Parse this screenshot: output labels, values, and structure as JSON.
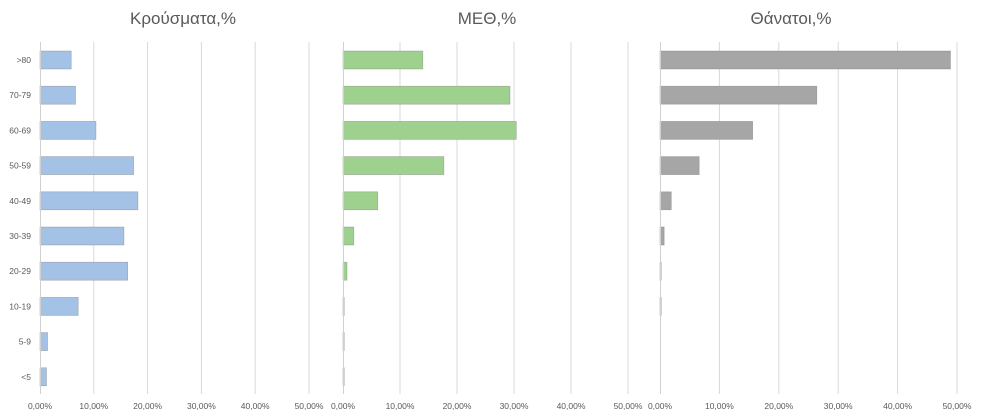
{
  "chart_data": [
    {
      "type": "bar",
      "orientation": "horizontal",
      "title": "Κρούσματα,%",
      "categories": [
        ">80",
        "70-79",
        "60-69",
        "50-59",
        "40-49",
        "30-39",
        "20-29",
        "10-19",
        "5-9",
        "<5"
      ],
      "values": [
        5.8,
        6.6,
        10.4,
        17.4,
        18.2,
        15.6,
        16.3,
        7.1,
        1.4,
        1.2
      ],
      "xlim": [
        0,
        50
      ],
      "xticks": [
        "0,00%",
        "10,00%",
        "20,00%",
        "30,00%",
        "40,00%",
        "50,00%"
      ],
      "color": "#a4c2e6",
      "grid": true
    },
    {
      "type": "bar",
      "orientation": "horizontal",
      "title": "ΜΕΘ,%",
      "categories": [
        ">80",
        "70-79",
        "60-69",
        "50-59",
        "40-49",
        "30-39",
        "20-29",
        "10-19",
        "5-9",
        "<5"
      ],
      "values": [
        14.0,
        29.3,
        30.4,
        17.7,
        6.1,
        1.9,
        0.7,
        0.15,
        0.1,
        0.1
      ],
      "xlim": [
        0,
        50
      ],
      "xticks": [
        "0,00%",
        "10,00%",
        "20,00%",
        "30,00%",
        "40,00%",
        "50,00%"
      ],
      "color": "#9fd18e",
      "grid": true
    },
    {
      "type": "bar",
      "orientation": "horizontal",
      "title": "Θάνατοι,%",
      "categories": [
        ">80",
        "70-79",
        "60-69",
        "50-59",
        "40-49",
        "30-39",
        "20-29",
        "10-19",
        "5-9",
        "<5"
      ],
      "values": [
        48.9,
        26.4,
        15.6,
        6.6,
        1.9,
        0.7,
        0.15,
        0.1,
        0,
        0
      ],
      "xlim": [
        0,
        50
      ],
      "xticks": [
        "0,00%",
        "10,00%",
        "20,00%",
        "30,00%",
        "40,00%",
        "50,00%"
      ],
      "color": "#a6a6a6",
      "grid": true
    }
  ]
}
